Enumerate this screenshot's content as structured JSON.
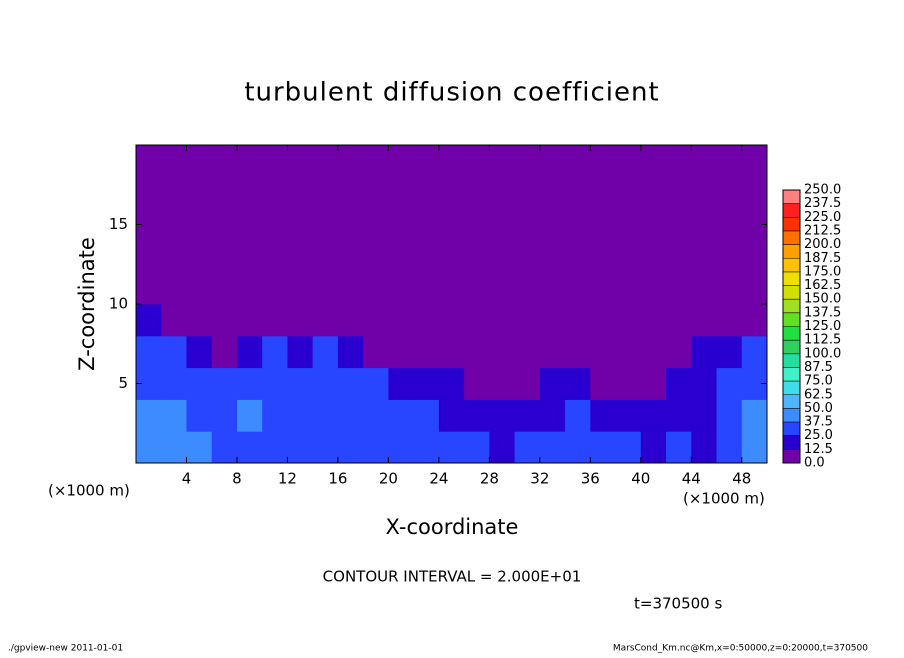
{
  "chart_data": {
    "type": "heatmap",
    "title": "turbulent diffusion coefficient",
    "x_label": "X-coordinate",
    "y_label": "Z-coordinate",
    "x_unit": "(×1000 m)",
    "y_unit": "(×1000 m)",
    "contour_note": "CONTOUR INTERVAL = 2.000E+01",
    "time_note": "t=370500 s",
    "footer_left": "./gpview-new  2011-01-01",
    "footer_right": "MarsCond_Km.nc@Km,x=0:50000,z=0:20000,t=370500",
    "xlim": [
      0,
      50
    ],
    "ylim": [
      0,
      20
    ],
    "xticks": [
      4,
      8,
      12,
      16,
      20,
      24,
      28,
      32,
      36,
      40,
      44,
      48
    ],
    "yticks": [
      5,
      10,
      15
    ],
    "x_edges": [
      0,
      2,
      4,
      6,
      8,
      10,
      12,
      14,
      16,
      18,
      20,
      22,
      24,
      26,
      28,
      30,
      32,
      34,
      36,
      38,
      40,
      42,
      44,
      46,
      48,
      50
    ],
    "y_edges": [
      0,
      2,
      4,
      6,
      8,
      10,
      12,
      14,
      16,
      18,
      20
    ],
    "z": [
      [
        40,
        45,
        40,
        30,
        35,
        30,
        25,
        30,
        35,
        30,
        30,
        25,
        30,
        25,
        20,
        30,
        25,
        30,
        25,
        30,
        20,
        25,
        20,
        30,
        45
      ],
      [
        40,
        45,
        35,
        30,
        40,
        35,
        30,
        35,
        35,
        30,
        25,
        25,
        20,
        20,
        15,
        20,
        20,
        25,
        20,
        20,
        15,
        15,
        20,
        25,
        40
      ],
      [
        35,
        35,
        25,
        25,
        30,
        35,
        30,
        30,
        25,
        25,
        20,
        20,
        15,
        10,
        10,
        10,
        15,
        15,
        10,
        10,
        10,
        15,
        20,
        25,
        35
      ],
      [
        30,
        25,
        15,
        10,
        20,
        25,
        20,
        25,
        20,
        10,
        5,
        5,
        5,
        5,
        5,
        5,
        5,
        5,
        5,
        5,
        5,
        10,
        15,
        20,
        30
      ],
      [
        15,
        5,
        0,
        0,
        5,
        10,
        5,
        10,
        5,
        0,
        0,
        0,
        0,
        0,
        0,
        0,
        0,
        0,
        0,
        0,
        0,
        0,
        0,
        0,
        10
      ],
      [
        0,
        0,
        0,
        0,
        0,
        0,
        0,
        0,
        0,
        0,
        0,
        0,
        0,
        0,
        0,
        0,
        0,
        0,
        0,
        0,
        0,
        0,
        0,
        0,
        0
      ],
      [
        0,
        0,
        0,
        0,
        0,
        0,
        0,
        0,
        0,
        0,
        0,
        0,
        0,
        0,
        0,
        0,
        0,
        0,
        0,
        0,
        0,
        0,
        0,
        0,
        0
      ],
      [
        0,
        0,
        0,
        0,
        0,
        0,
        0,
        0,
        0,
        0,
        0,
        0,
        0,
        0,
        0,
        0,
        0,
        0,
        0,
        0,
        0,
        0,
        0,
        0,
        0
      ],
      [
        0,
        0,
        0,
        0,
        0,
        0,
        0,
        0,
        0,
        0,
        0,
        0,
        0,
        0,
        0,
        0,
        0,
        0,
        0,
        0,
        0,
        0,
        0,
        0,
        0
      ],
      [
        0,
        0,
        0,
        0,
        0,
        0,
        0,
        0,
        0,
        0,
        0,
        0,
        0,
        0,
        0,
        0,
        0,
        0,
        0,
        0,
        0,
        0,
        0,
        0,
        0
      ]
    ],
    "levels": [
      {
        "value": 0,
        "label": "0.0"
      },
      {
        "value": 12.5,
        "label": "12.5"
      },
      {
        "value": 25,
        "label": "25.0"
      },
      {
        "value": 37.5,
        "label": "37.5"
      },
      {
        "value": 50,
        "label": "50.0"
      },
      {
        "value": 62.5,
        "label": "62.5"
      },
      {
        "value": 75,
        "label": "75.0"
      },
      {
        "value": 87.5,
        "label": "87.5"
      },
      {
        "value": 100,
        "label": "100.0"
      },
      {
        "value": 112.5,
        "label": "112.5"
      },
      {
        "value": 125,
        "label": "125.0"
      },
      {
        "value": 137.5,
        "label": "137.5"
      },
      {
        "value": 150,
        "label": "150.0"
      },
      {
        "value": 162.5,
        "label": "162.5"
      },
      {
        "value": 175,
        "label": "175.0"
      },
      {
        "value": 187.5,
        "label": "187.5"
      },
      {
        "value": 200,
        "label": "200.0"
      },
      {
        "value": 212.5,
        "label": "212.5"
      },
      {
        "value": 225,
        "label": "225.0"
      },
      {
        "value": 237.5,
        "label": "237.5"
      },
      {
        "value": 250,
        "label": "250.0"
      }
    ],
    "colors": [
      "#7000a8",
      "#2a00d0",
      "#2846ff",
      "#3c8cff",
      "#50b4ff",
      "#40dce8",
      "#40f0c8",
      "#20e0a0",
      "#30d060",
      "#20e040",
      "#60e020",
      "#a0e020",
      "#d0e000",
      "#f0e000",
      "#ffc000",
      "#ffa000",
      "#ff7000",
      "#ff3000",
      "#ff2020",
      "#ff8080"
    ]
  }
}
